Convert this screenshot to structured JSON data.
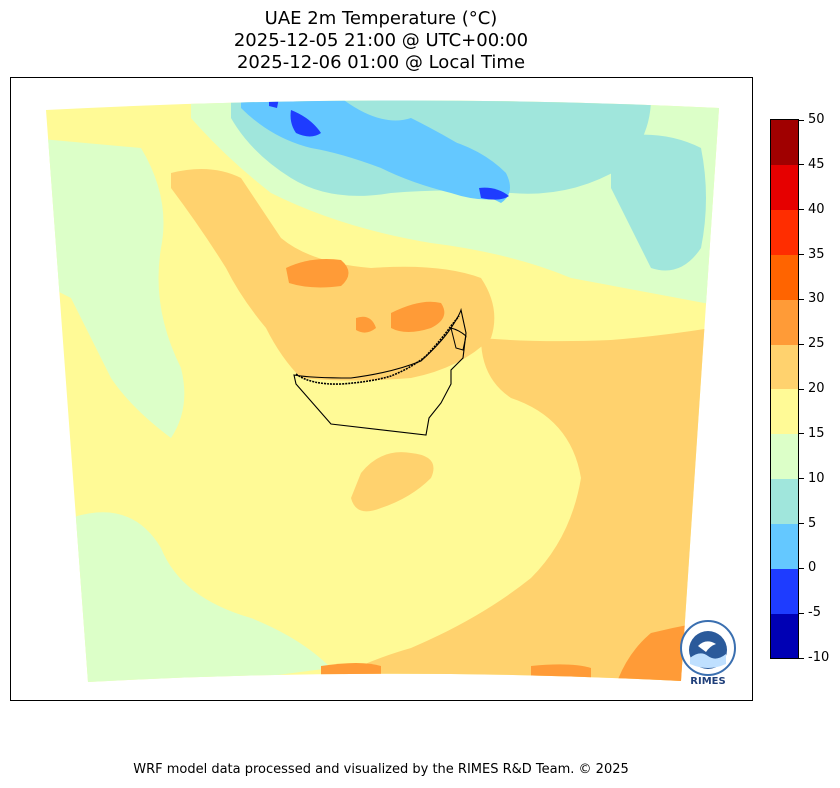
{
  "title": {
    "line1": "UAE 2m Temperature (°C)",
    "line2": "2025-12-05 21:00 @ UTC+00:00",
    "line3": "2025-12-06 01:00 @ Local Time"
  },
  "colorbar": {
    "levels": [
      {
        "from": -10,
        "to": -5,
        "color": "#0000b4"
      },
      {
        "from": -5,
        "to": 0,
        "color": "#1e3cff"
      },
      {
        "from": 0,
        "to": 5,
        "color": "#64c8ff"
      },
      {
        "from": 5,
        "to": 10,
        "color": "#a0e6dc"
      },
      {
        "from": 10,
        "to": 15,
        "color": "#dcffc8"
      },
      {
        "from": 15,
        "to": 20,
        "color": "#fffa96"
      },
      {
        "from": 20,
        "to": 25,
        "color": "#ffd26e"
      },
      {
        "from": 25,
        "to": 30,
        "color": "#ff9b37"
      },
      {
        "from": 30,
        "to": 35,
        "color": "#ff6400"
      },
      {
        "from": 35,
        "to": 40,
        "color": "#ff2d00"
      },
      {
        "from": 40,
        "to": 45,
        "color": "#e60000"
      },
      {
        "from": 45,
        "to": 50,
        "color": "#a00000"
      }
    ],
    "tick_labels": [
      "50",
      "45",
      "40",
      "35",
      "30",
      "25",
      "20",
      "15",
      "10",
      "5",
      "0",
      "-5",
      "-10"
    ]
  },
  "logo": {
    "text": "RIMES",
    "icon": "rimes-logo-icon"
  },
  "footer": "WRF model data processed and visualized by the RIMES R&D Team. © 2025"
}
